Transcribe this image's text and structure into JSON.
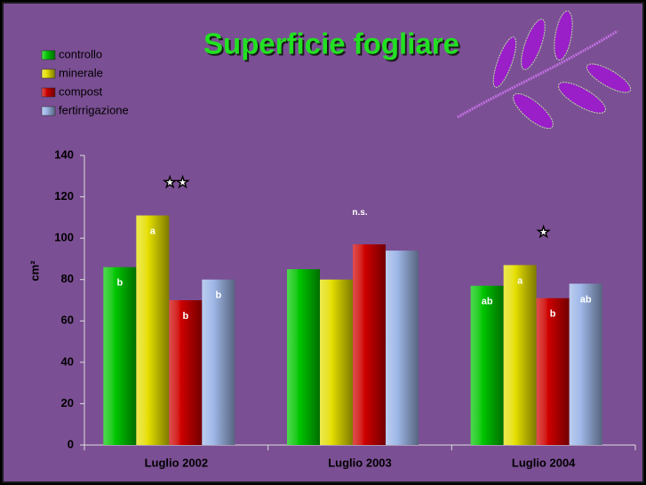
{
  "chart_data": {
    "type": "bar",
    "title": "Superficie fogliare",
    "y_label": "cm²",
    "categories": [
      "Luglio 2002",
      "Luglio 2003",
      "Luglio 2004"
    ],
    "series": [
      {
        "name": "controllo",
        "color": "#00c800",
        "values": [
          86,
          85,
          77
        ],
        "letters": [
          "b",
          null,
          "ab"
        ]
      },
      {
        "name": "minerale",
        "color": "#e6e000",
        "values": [
          111,
          80,
          87
        ],
        "letters": [
          "a",
          null,
          "a"
        ]
      },
      {
        "name": "compost",
        "color": "#d00000",
        "values": [
          70,
          97,
          71
        ],
        "letters": [
          "b",
          null,
          "b"
        ]
      },
      {
        "name": "fertirrigazione",
        "color": "#9fb8e8",
        "values": [
          80,
          94,
          78
        ],
        "letters": [
          "b",
          null,
          "ab"
        ]
      }
    ],
    "group_annotations": [
      "★★",
      "n.s.",
      "★"
    ],
    "ylim": [
      0,
      140
    ],
    "yticks": [
      0,
      20,
      40,
      60,
      80,
      100,
      120,
      140
    ],
    "grid": false
  }
}
